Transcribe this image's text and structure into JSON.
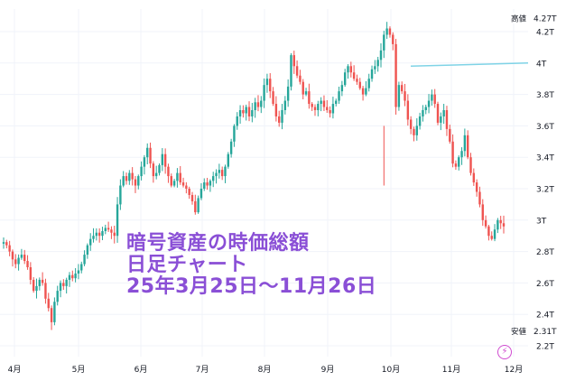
{
  "overlay": {
    "line1": "暗号資産の時価総額",
    "line2": "日足チャート",
    "line3": "25年3月25日～11月26日"
  },
  "colors": {
    "up": "#26a69a",
    "down": "#ef5350",
    "overlay_text": "#8a4fd6",
    "grid": "#f0f3fa",
    "axis_text": "#131722",
    "trendline": "#7fd3e6"
  },
  "icons": {
    "bottom_right": "lightning-icon"
  },
  "chart_data": {
    "type": "candlestick",
    "title": "",
    "xlabel": "",
    "ylabel": "",
    "unit": "T",
    "ylim": [
      2.15,
      4.32
    ],
    "x_ticks": [
      "4月",
      "5月",
      "6月",
      "7月",
      "8月",
      "9月",
      "10月",
      "11月",
      "12月"
    ],
    "y_ticks": [
      "4.2T",
      "4T",
      "3.8T",
      "3.6T",
      "3.4T",
      "3.2T",
      "3T",
      "2.8T",
      "2.6T",
      "2.4T",
      "2.2T"
    ],
    "high_label": "高値",
    "high_value": "4.27T",
    "low_label": "安値",
    "low_value": "2.31T",
    "series": [
      {
        "values": [
          2.86,
          2.84,
          2.8,
          2.75,
          2.72,
          2.76,
          2.78,
          2.74,
          2.7,
          2.62,
          2.55,
          2.58,
          2.62,
          2.6,
          2.5,
          2.44,
          2.35,
          2.48,
          2.55,
          2.6,
          2.58,
          2.62,
          2.65,
          2.63,
          2.66,
          2.68,
          2.72,
          2.78,
          2.84,
          2.88,
          2.9,
          2.92,
          2.9,
          2.93,
          2.95,
          2.94,
          2.92,
          2.9,
          3.1,
          3.22,
          3.28,
          3.25,
          3.3,
          3.26,
          3.22,
          3.28,
          3.34,
          3.4,
          3.46,
          3.36,
          3.28,
          3.3,
          3.35,
          3.42,
          3.34,
          3.28,
          3.22,
          3.25,
          3.3,
          3.24,
          3.22,
          3.2,
          3.16,
          3.12,
          3.05,
          3.14,
          3.2,
          3.24,
          3.22,
          3.25,
          3.28,
          3.3,
          3.32,
          3.28,
          3.34,
          3.42,
          3.5,
          3.6,
          3.66,
          3.7,
          3.68,
          3.72,
          3.66,
          3.7,
          3.75,
          3.72,
          3.76,
          3.86,
          3.9,
          3.82,
          3.74,
          3.66,
          3.62,
          3.7,
          3.76,
          3.85,
          4.05,
          3.98,
          3.92,
          3.88,
          3.8,
          3.82,
          3.74,
          3.72,
          3.7,
          3.74,
          3.76,
          3.72,
          3.7,
          3.68,
          3.74,
          3.76,
          3.82,
          3.86,
          3.94,
          3.98,
          3.94,
          3.9,
          3.88,
          3.84,
          3.8,
          3.84,
          3.9,
          3.96,
          3.98,
          4.02,
          4.08,
          4.18,
          4.22,
          4.18,
          4.12,
          3.72,
          3.86,
          3.82,
          3.76,
          3.64,
          3.58,
          3.54,
          3.6,
          3.66,
          3.7,
          3.72,
          3.76,
          3.8,
          3.74,
          3.62,
          3.66,
          3.7,
          3.58,
          3.5,
          3.36,
          3.34,
          3.4,
          3.44,
          3.54,
          3.4,
          3.3,
          3.24,
          3.18,
          3.1,
          3.0,
          2.96,
          2.9,
          2.88,
          2.94,
          3.0,
          2.98,
          2.96
        ]
      }
    ],
    "trendline": {
      "from": 3.98,
      "to": 4.0
    }
  }
}
